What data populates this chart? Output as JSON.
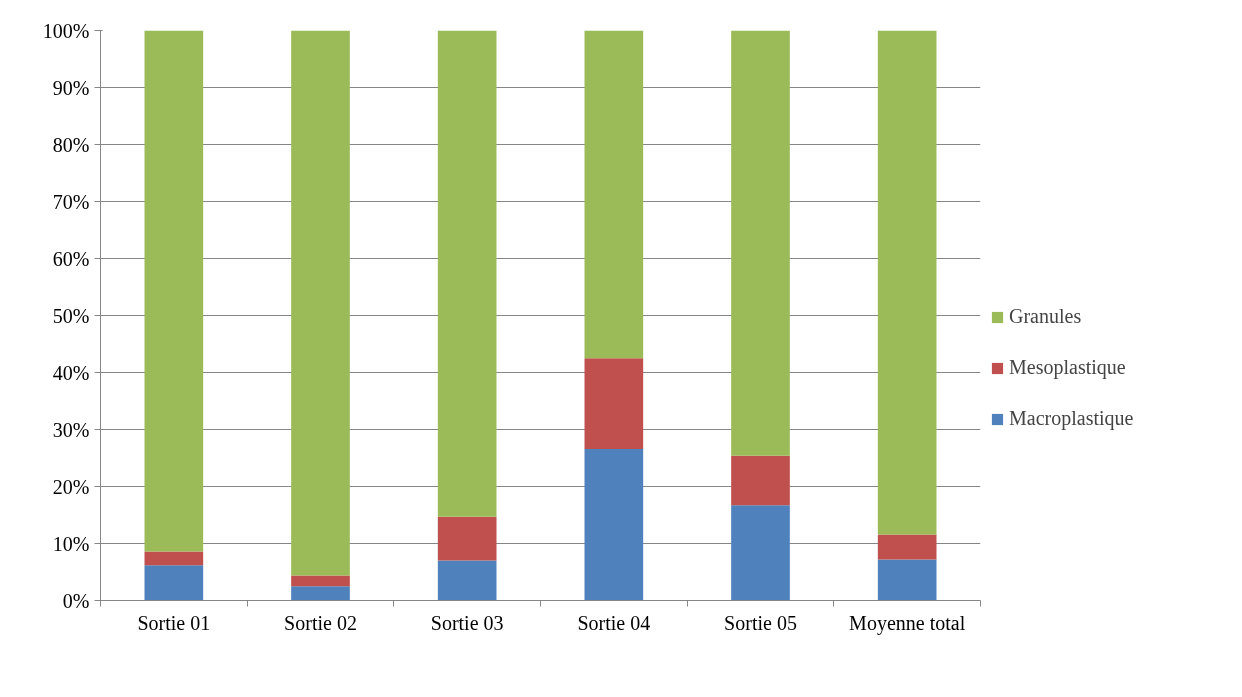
{
  "chart_data": {
    "type": "bar",
    "stacked": true,
    "categories": [
      "Sortie 01",
      "Sortie 02",
      "Sortie 03",
      "Sortie 04",
      "Sortie 05",
      "Moyenne total"
    ],
    "series": [
      {
        "name": "Macroplastique",
        "color": "#4f81bd",
        "values": [
          6.2,
          2.5,
          7.0,
          26.6,
          16.7,
          7.2
        ]
      },
      {
        "name": "Mesoplastique",
        "color": "#c0504d",
        "values": [
          2.4,
          1.9,
          7.7,
          15.9,
          8.7,
          4.4
        ]
      },
      {
        "name": "Granules",
        "color": "#9bbb59",
        "values": [
          91.4,
          95.6,
          85.3,
          57.5,
          74.6,
          88.4
        ]
      }
    ],
    "ylim": [
      0,
      100
    ],
    "yticks": [
      {
        "value": 0,
        "label": "0%"
      },
      {
        "value": 10,
        "label": "10%"
      },
      {
        "value": 20,
        "label": "20%"
      },
      {
        "value": 30,
        "label": "30%"
      },
      {
        "value": 40,
        "label": "40%"
      },
      {
        "value": 50,
        "label": "50%"
      },
      {
        "value": 60,
        "label": "60%"
      },
      {
        "value": 70,
        "label": "70%"
      },
      {
        "value": 80,
        "label": "80%"
      },
      {
        "value": 90,
        "label": "90%"
      },
      {
        "value": 100,
        "label": "100%"
      }
    ],
    "grid": "y",
    "legend": "right"
  }
}
